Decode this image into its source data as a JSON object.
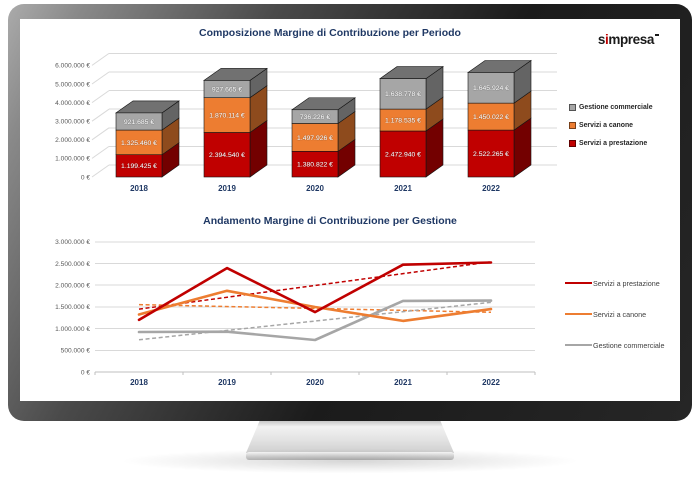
{
  "brand": {
    "logo_text": "simpresa"
  },
  "theme": {
    "title_color": "#1F3864",
    "axis_text_color": "#595959",
    "gridline_color": "#D9D9D9",
    "axis_line_color": "#BFBFBF",
    "red": "#C00000",
    "orange": "#ED7D31",
    "gray": "#A6A6A6"
  },
  "chart_data": [
    {
      "type": "bar",
      "variant": "3d-stacked",
      "title": "Composizione Margine di Contribuzione per Periodo",
      "categories": [
        "2018",
        "2019",
        "2020",
        "2021",
        "2022"
      ],
      "series": [
        {
          "name": "Servizi a prestazione",
          "color": "#C00000",
          "values": [
            1199425,
            2394540,
            1380822,
            2472940,
            2522265
          ]
        },
        {
          "name": "Servizi a canone",
          "color": "#ED7D31",
          "values": [
            1325460,
            1870114,
            1497926,
            1178535,
            1450022
          ]
        },
        {
          "name": "Gestione commerciale",
          "color": "#A6A6A6",
          "values": [
            921685,
            927665,
            736226,
            1638778,
            1645924
          ]
        }
      ],
      "data_labels": true,
      "ylim": [
        0,
        6000000
      ],
      "ytick_labels": [
        "0 €",
        "1.000.000 €",
        "2.000.000 €",
        "3.000.000 €",
        "4.000.000 €",
        "5.000.000 €",
        "6.000.000 €"
      ],
      "grid": true,
      "legend_position": "right",
      "legend_order_top_to_bottom": [
        "Gestione commerciale",
        "Servizi a canone",
        "Servizi a prestazione"
      ]
    },
    {
      "type": "line",
      "title": "Andamento Margine di Contribuzione per Gestione",
      "categories": [
        "2018",
        "2019",
        "2020",
        "2021",
        "2022"
      ],
      "series": [
        {
          "name": "Servizi a prestazione",
          "color": "#C00000",
          "trendline": "linear-dashed",
          "values": [
            1199425,
            2394540,
            1380822,
            2472940,
            2522265
          ]
        },
        {
          "name": "Servizi a canone",
          "color": "#ED7D31",
          "trendline": "linear-dashed",
          "values": [
            1325460,
            1870114,
            1497926,
            1178535,
            1450022
          ]
        },
        {
          "name": "Gestione commerciale",
          "color": "#A6A6A6",
          "trendline": "linear-dashed",
          "values": [
            921685,
            927665,
            736226,
            1638778,
            1645924
          ]
        }
      ],
      "ylim": [
        0,
        3000000
      ],
      "ytick_labels": [
        "0 €",
        "500.000 €",
        "1.000.000 €",
        "1.500.000 €",
        "2.000.000 €",
        "2.500.000 €",
        "3.000.000 €"
      ],
      "grid": true,
      "legend_position": "right"
    }
  ]
}
